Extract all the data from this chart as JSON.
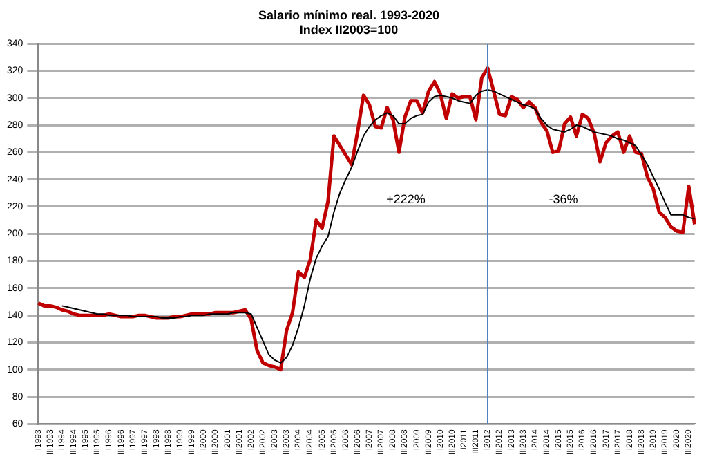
{
  "chart_data": {
    "type": "line",
    "title": "Salario mínimo real. 1993-2020",
    "subtitle": "Index II2003=100",
    "categories": [
      "I1993",
      null,
      "III1993",
      null,
      "I1994",
      null,
      "III1994",
      null,
      "I1995",
      null,
      "III1995",
      null,
      "I1996",
      null,
      "III1996",
      null,
      "I1997",
      null,
      "III1997",
      null,
      "I1998",
      null,
      "III1998",
      null,
      "I1999",
      null,
      "III1999",
      null,
      "I2000",
      null,
      "III2000",
      null,
      "I2001",
      null,
      "III2001",
      null,
      "I2002",
      null,
      "III2002",
      null,
      "I2003",
      null,
      "III2003",
      null,
      "I2004",
      null,
      "III2004",
      null,
      "I2005",
      null,
      "III2005",
      null,
      "I2006",
      null,
      "III2006",
      null,
      "I2007",
      null,
      "III2007",
      null,
      "I2008",
      null,
      "III2008",
      null,
      "I2009",
      null,
      "III2009",
      null,
      "I2010",
      null,
      "III2010",
      null,
      "I2011",
      null,
      "III2011",
      null,
      "I2012",
      null,
      "III2012",
      null,
      "I2013",
      null,
      "III2013",
      null,
      "I2014",
      null,
      "III2014",
      null,
      "I2015",
      null,
      "III2015",
      null,
      "I2016",
      null,
      "III2016",
      null,
      "I2017",
      null,
      "III2017",
      null,
      "I2018",
      null,
      "III2018",
      null,
      "I2019",
      null,
      "III2019",
      null,
      "I2020",
      null,
      "III2020",
      null
    ],
    "series": [
      {
        "color": "#c00000",
        "values": [
          149,
          147,
          147,
          146,
          144,
          143,
          141,
          140,
          140,
          140,
          140,
          140,
          141,
          140,
          139,
          139,
          139,
          140,
          140,
          139,
          138,
          138,
          138,
          139,
          139,
          140,
          141,
          141,
          141,
          141,
          142,
          142,
          142,
          142,
          143,
          144,
          137,
          114,
          105,
          103,
          102,
          100,
          129,
          142,
          172,
          168,
          181,
          210,
          204,
          224,
          272,
          265,
          258,
          251,
          275,
          302,
          295,
          279,
          278,
          293,
          284,
          260,
          286,
          298,
          298,
          289,
          305,
          312,
          303,
          285,
          303,
          300,
          301,
          301,
          284,
          315,
          322,
          305,
          288,
          287,
          301,
          299,
          293,
          297,
          293,
          282,
          276,
          260,
          261,
          281,
          286,
          272,
          288,
          285,
          274,
          253,
          267,
          272,
          275,
          260,
          272,
          260,
          259,
          242,
          233,
          216,
          212,
          205,
          202,
          201,
          235,
          207
        ]
      },
      {
        "color": "#000000",
        "values": [
          null,
          null,
          null,
          null,
          147,
          146,
          145,
          144,
          143,
          142,
          141,
          141,
          140,
          140,
          140,
          140,
          139,
          139,
          139,
          139,
          139,
          138,
          138,
          138,
          139,
          139,
          140,
          140,
          140,
          141,
          141,
          141,
          141,
          142,
          142,
          142,
          141,
          131,
          121,
          111,
          107,
          105,
          109,
          118,
          131,
          147,
          167,
          182,
          191,
          198,
          216,
          230,
          240,
          249,
          261,
          272,
          279,
          284,
          287,
          289,
          287,
          281,
          281,
          285,
          287,
          288,
          297,
          301,
          302,
          301,
          300,
          298,
          297,
          296,
          302,
          305,
          306,
          305,
          303,
          301,
          299,
          297,
          295,
          294,
          292,
          285,
          280,
          277,
          276,
          275,
          277,
          280,
          279,
          277,
          275,
          274,
          273,
          272,
          270,
          269,
          267,
          265,
          258,
          251,
          242,
          233,
          223,
          214,
          214,
          214,
          212,
          211
        ]
      }
    ],
    "ylim": [
      60,
      340
    ],
    "yticks": [
      60,
      80,
      100,
      120,
      140,
      160,
      180,
      200,
      220,
      240,
      260,
      280,
      300,
      320,
      340
    ],
    "grid": "y",
    "legend": false,
    "marker": "none",
    "ref_lines": [
      {
        "axis": "x",
        "value": "I2012",
        "color": "#4f81bd"
      }
    ],
    "annotations": [
      "+222%",
      "-36%"
    ]
  }
}
